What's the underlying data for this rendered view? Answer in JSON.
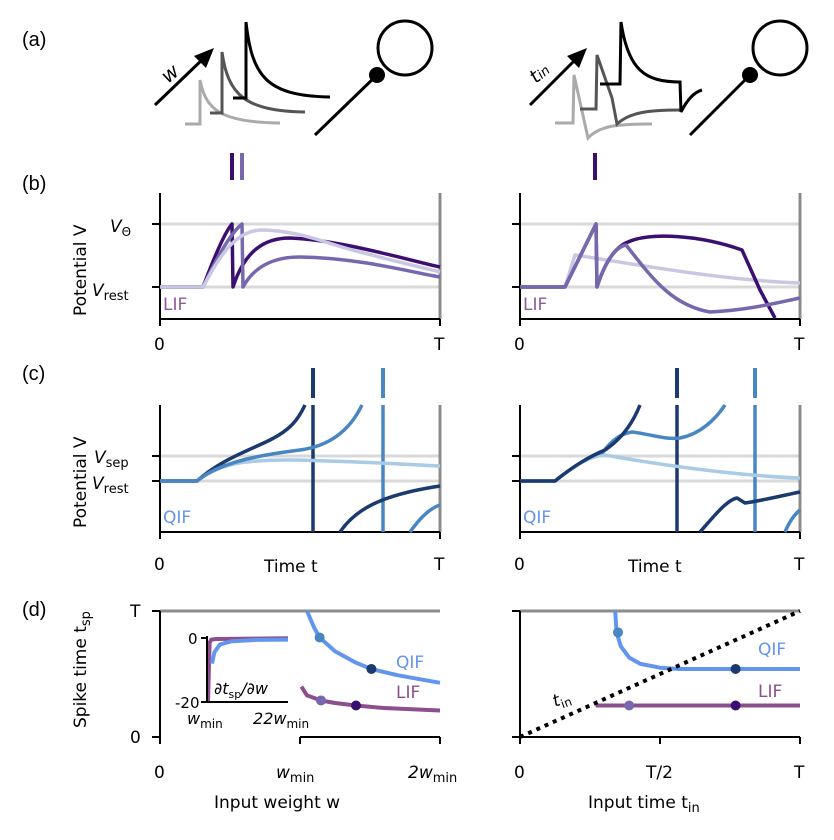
{
  "panels": {
    "a": "(a)",
    "b": "(b)",
    "c": "(c)",
    "d": "(d)"
  },
  "schematic": {
    "left_arrow_label": "w",
    "right_arrow_label": "t",
    "right_arrow_sub": "in"
  },
  "panel_b": {
    "ylabel": "Potential V",
    "ytick_theta": "V",
    "ytick_theta_sub": "Θ",
    "ytick_rest": "V",
    "ytick_rest_sub": "rest",
    "model_label": "LIF",
    "xtick_start": "0",
    "xtick_end": "T"
  },
  "panel_c": {
    "ylabel": "Potential V",
    "ytick_sep": "V",
    "ytick_sep_sub": "sep",
    "ytick_rest": "V",
    "ytick_rest_sub": "rest",
    "model_label": "QIF",
    "xlabel": "Time t",
    "xtick_start": "0",
    "xtick_end": "T"
  },
  "colors": {
    "lif_trace": [
      "#3b0f70",
      "#7767ad",
      "#c9c7e2"
    ],
    "qif_trace": [
      "#1b3a6f",
      "#4a86c1",
      "#a9cbe6"
    ],
    "qif_curve": "#6495ed",
    "lif_curve": "#8b4f8c",
    "threshold_line": "#8c8c8c",
    "reference_line": "#d9d9d9"
  },
  "chart_data": [
    {
      "type": "line",
      "panel": "d-left",
      "ylabel": "Spike time t",
      "ylabel_sub": "sp",
      "xlabel": "Input weight w",
      "xticks": [
        "0",
        "w_min",
        "2w_min"
      ],
      "xtick_main": [
        "0",
        "w",
        "2w"
      ],
      "xtick_sub": [
        "",
        "min",
        "min"
      ],
      "yticks": [
        "0",
        "T"
      ],
      "xlim": [
        0,
        2
      ],
      "ylim": [
        0,
        1
      ],
      "series": [
        {
          "name": "QIF",
          "x": [
            1.05,
            1.1,
            1.14,
            1.25,
            1.4,
            1.51,
            1.7,
            2.0
          ],
          "y": [
            1.0,
            0.87,
            0.79,
            0.68,
            0.59,
            0.54,
            0.49,
            0.43
          ]
        },
        {
          "name": "LIF",
          "x": [
            1.01,
            1.05,
            1.15,
            1.25,
            1.4,
            1.6,
            2.0
          ],
          "y": [
            0.4,
            0.33,
            0.29,
            0.27,
            0.25,
            0.23,
            0.21
          ]
        }
      ],
      "markers": [
        {
          "series": "QIF",
          "x": 1.14,
          "y": 0.79,
          "color": "#4a86c1"
        },
        {
          "series": "QIF",
          "x": 1.51,
          "y": 0.54,
          "color": "#1b3a6f"
        },
        {
          "series": "LIF",
          "x": 1.15,
          "y": 0.29,
          "color": "#7767ad"
        },
        {
          "series": "LIF",
          "x": 1.4,
          "y": 0.25,
          "color": "#3b0f70"
        }
      ],
      "inset": {
        "ylabel": "∂t_sp/∂w",
        "ylabel_a": "∂t",
        "ylabel_sub": "sp",
        "ylabel_b": "/∂w",
        "yticks": [
          "0",
          "-20"
        ],
        "xtick_main": [
          "w",
          "2w"
        ],
        "xtick_sub": [
          "min",
          "min"
        ],
        "xlim": [
          1,
          2
        ],
        "ylim": [
          -20,
          0
        ],
        "series": [
          {
            "name": "LIF",
            "x": [
              1.0,
              1.02,
              1.04,
              1.1,
              2.0
            ],
            "y": [
              -20,
              -1.5,
              -0.5,
              -0.3,
              -0.1
            ]
          },
          {
            "name": "QIF",
            "x": [
              1.05,
              1.08,
              1.15,
              1.3,
              1.6,
              2.0
            ],
            "y": [
              -8,
              -4.5,
              -2,
              -1,
              -0.6,
              -0.5
            ]
          }
        ]
      }
    },
    {
      "type": "line",
      "panel": "d-right",
      "xlabel": "Input time t",
      "xlabel_sub": "in",
      "xticks": [
        "0",
        "T/2",
        "T"
      ],
      "xlim": [
        0,
        1
      ],
      "ylim": [
        0,
        1
      ],
      "diagonal_label": "t",
      "diagonal_label_sub": "in",
      "series": [
        {
          "name": "QIF",
          "x": [
            0.34,
            0.345,
            0.36,
            0.39,
            0.43,
            0.5,
            0.57,
            0.7,
            1.0
          ],
          "y": [
            1.0,
            0.83,
            0.72,
            0.63,
            0.58,
            0.55,
            0.54,
            0.54,
            0.54
          ]
        },
        {
          "name": "LIF",
          "x": [
            0.27,
            1.0
          ],
          "y": [
            0.25,
            0.25
          ]
        },
        {
          "name": "t_in",
          "x": [
            0,
            1
          ],
          "y": [
            0,
            1
          ],
          "style": "dotted"
        }
      ],
      "markers": [
        {
          "series": "QIF",
          "x": 0.35,
          "y": 0.83,
          "color": "#4a86c1"
        },
        {
          "series": "QIF",
          "x": 0.77,
          "y": 0.54,
          "color": "#1b3a6f"
        },
        {
          "series": "LIF",
          "x": 0.39,
          "y": 0.25,
          "color": "#7767ad"
        },
        {
          "series": "LIF",
          "x": 0.77,
          "y": 0.25,
          "color": "#3b0f70"
        }
      ]
    }
  ]
}
